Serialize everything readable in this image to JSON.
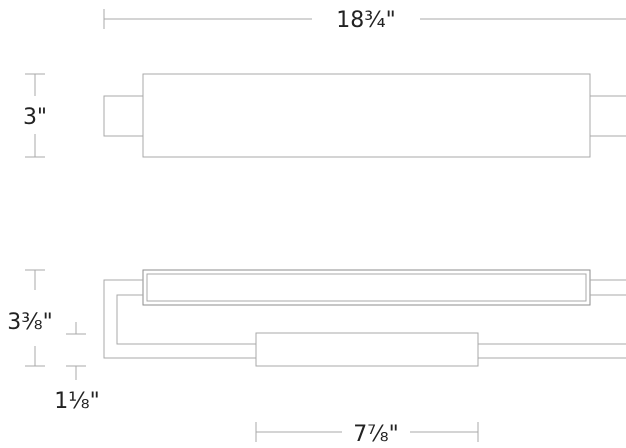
{
  "dimensions": {
    "overall_width": "18¾\"",
    "top_view_height": "3\"",
    "side_view_height": "3⅜\"",
    "side_offset": "1⅛\"",
    "base_width": "7⅞\""
  },
  "colors": {
    "line": "#a9a9a9",
    "text": "#222222"
  }
}
